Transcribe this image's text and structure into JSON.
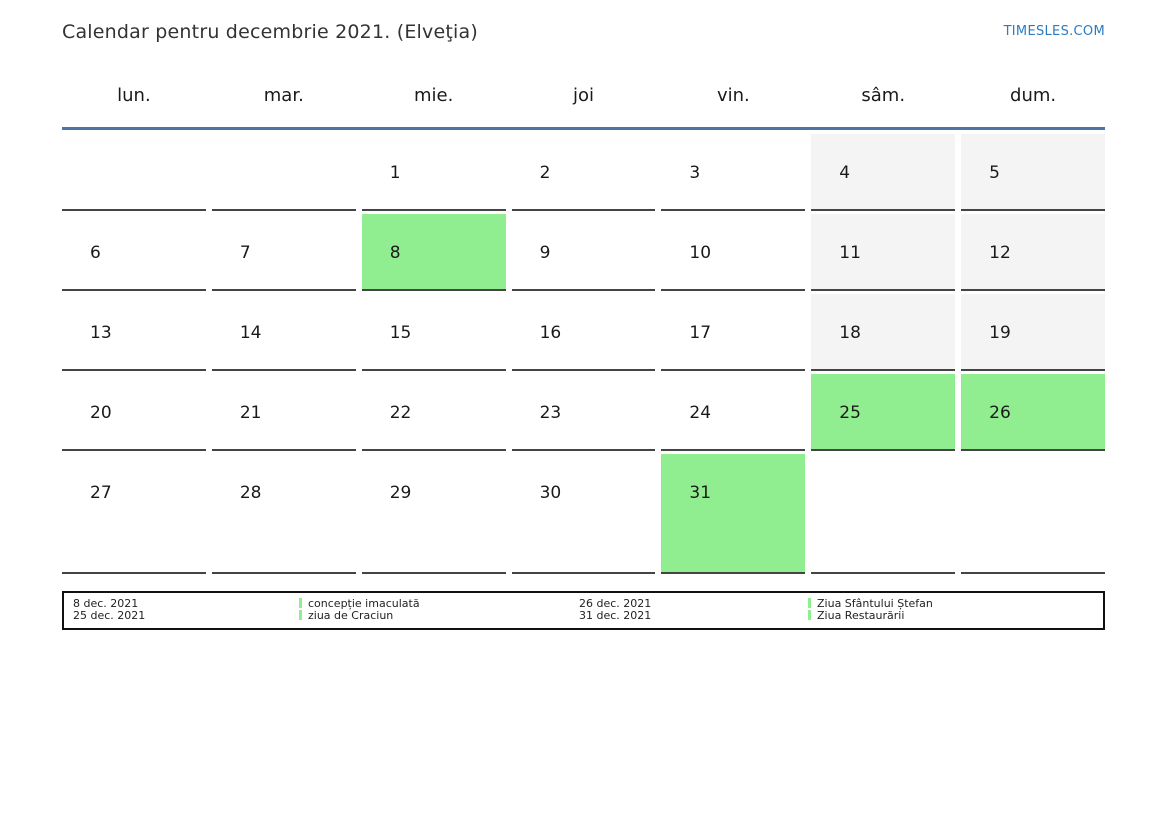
{
  "header": {
    "title": "Calendar pentru decembrie 2021. (Elveţia)",
    "site_link": "TIMESLES.COM"
  },
  "colors": {
    "holiday_green": "#90ee90",
    "weekend_gray": "#f4f4f4",
    "header_underline_blue": "#4d74a4",
    "link_blue": "#2b7bc2",
    "cell_border_dark": "#444444"
  },
  "calendar": {
    "weekday_headers": [
      "lun.",
      "mar.",
      "mie.",
      "joi",
      "vin.",
      "sâm.",
      "dum."
    ],
    "weeks": [
      [
        {
          "day": "",
          "type": "empty"
        },
        {
          "day": "",
          "type": "empty"
        },
        {
          "day": "1",
          "type": "normal"
        },
        {
          "day": "2",
          "type": "normal"
        },
        {
          "day": "3",
          "type": "normal"
        },
        {
          "day": "4",
          "type": "weekend"
        },
        {
          "day": "5",
          "type": "weekend"
        }
      ],
      [
        {
          "day": "6",
          "type": "normal"
        },
        {
          "day": "7",
          "type": "normal"
        },
        {
          "day": "8",
          "type": "holiday"
        },
        {
          "day": "9",
          "type": "normal"
        },
        {
          "day": "10",
          "type": "normal"
        },
        {
          "day": "11",
          "type": "weekend"
        },
        {
          "day": "12",
          "type": "weekend"
        }
      ],
      [
        {
          "day": "13",
          "type": "normal"
        },
        {
          "day": "14",
          "type": "normal"
        },
        {
          "day": "15",
          "type": "normal"
        },
        {
          "day": "16",
          "type": "normal"
        },
        {
          "day": "17",
          "type": "normal"
        },
        {
          "day": "18",
          "type": "weekend"
        },
        {
          "day": "19",
          "type": "weekend"
        }
      ],
      [
        {
          "day": "20",
          "type": "normal"
        },
        {
          "day": "21",
          "type": "normal"
        },
        {
          "day": "22",
          "type": "normal"
        },
        {
          "day": "23",
          "type": "normal"
        },
        {
          "day": "24",
          "type": "normal"
        },
        {
          "day": "25",
          "type": "holiday"
        },
        {
          "day": "26",
          "type": "holiday"
        }
      ],
      [
        {
          "day": "27",
          "type": "normal"
        },
        {
          "day": "28",
          "type": "normal"
        },
        {
          "day": "29",
          "type": "normal"
        },
        {
          "day": "30",
          "type": "normal"
        },
        {
          "day": "31",
          "type": "holiday"
        },
        {
          "day": "",
          "type": "empty"
        },
        {
          "day": "",
          "type": "empty"
        }
      ]
    ]
  },
  "legend": {
    "items": [
      {
        "date": "8 dec. 2021",
        "label": "concepție imaculată"
      },
      {
        "date": "25 dec. 2021",
        "label": "ziua de Craciun"
      },
      {
        "date": "26 dec. 2021",
        "label": "Ziua Sfântului Ștefan"
      },
      {
        "date": "31 dec. 2021",
        "label": "Ziua Restaurării"
      }
    ]
  }
}
